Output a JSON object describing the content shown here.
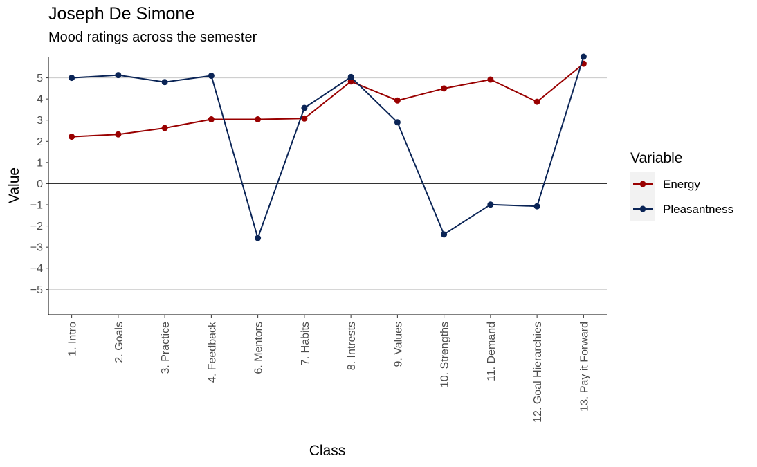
{
  "chart_data": {
    "type": "line",
    "title": "Joseph De Simone",
    "subtitle": "Mood ratings across the semester",
    "xlabel": "Class",
    "ylabel": "Value",
    "categories": [
      "1. Intro",
      "2. Goals",
      "3. Practice",
      "4. Feedback",
      "6. Mentors",
      "7. Habits",
      "8. Intrests",
      "9. Values",
      "10. Strengths",
      "11. Demand",
      "12. Goal Hierarchies",
      "13. Pay it Forward"
    ],
    "ylim": [
      -6.2,
      6.0
    ],
    "yticks": [
      5,
      4,
      3,
      2,
      1,
      0,
      -1,
      -2,
      -3,
      -4,
      -5
    ],
    "ytick_labels": [
      "5",
      "4",
      "3",
      "2",
      "1",
      "0",
      "−1",
      "−2",
      "−3",
      "−4",
      "−5"
    ],
    "gridlines_at": [
      5,
      -5
    ],
    "zero_line": true,
    "legend": {
      "title": "Variable",
      "position": "right"
    },
    "series": [
      {
        "name": "Energy",
        "color": "#990000",
        "values": [
          2.22,
          2.33,
          2.63,
          3.04,
          3.04,
          3.08,
          4.83,
          3.93,
          4.5,
          4.92,
          3.87,
          5.67
        ]
      },
      {
        "name": "Pleasantness",
        "color": "#0a2456",
        "values": [
          5.0,
          5.13,
          4.8,
          5.1,
          -2.57,
          3.58,
          5.04,
          2.9,
          -2.4,
          -0.99,
          -1.07,
          6.0
        ]
      }
    ]
  }
}
